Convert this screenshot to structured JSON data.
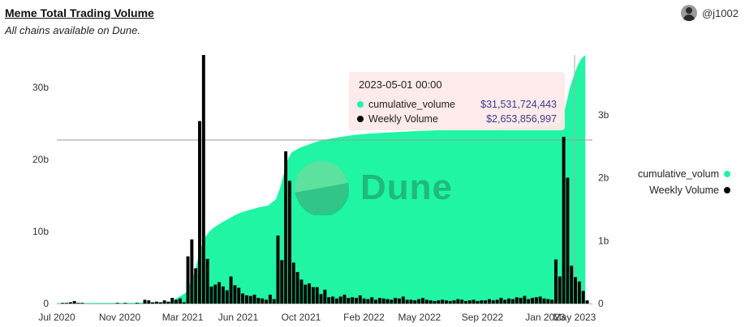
{
  "header": {
    "title": "Meme Total Trading Volume",
    "subtitle": "All chains available on Dune.",
    "author": "@j1002"
  },
  "watermark": "Dune",
  "legend": [
    {
      "label": "cumulative_volum",
      "color": "#1ff5a2"
    },
    {
      "label": "Weekly Volume",
      "color": "#000000"
    }
  ],
  "tooltip": {
    "title": "2023-05-01 00:00",
    "rows": [
      {
        "name": "cumulative_volume",
        "value": "$31,531,724,443",
        "color": "#1ff5a2"
      },
      {
        "name": "Weekly Volume",
        "value": "$2,653,856,997",
        "color": "#000000"
      }
    ]
  },
  "chart_data": {
    "type": "bar+area",
    "title": "Meme Total Trading Volume",
    "subtitle": "All chains available on Dune.",
    "x_tick_labels": [
      "Jul 2020",
      "Nov 2020",
      "Mar 2021",
      "Jun 2021",
      "Oct 2021",
      "Feb 2022",
      "May 2022",
      "Sep 2022",
      "Jan 2023",
      "May 2023"
    ],
    "y_left_ticks": [
      "0",
      "10b",
      "20b",
      "30b"
    ],
    "y_left_range": [
      0,
      34.5
    ],
    "y_right_ticks": [
      "0",
      "1b",
      "2b",
      "3b"
    ],
    "y_right_range": [
      0,
      3.95
    ],
    "series": [
      {
        "name": "cumulative_volume",
        "axis": "left",
        "unit": "billions USD",
        "points": [
          [
            0,
            0.05
          ],
          [
            20,
            0.1
          ],
          [
            29,
            0.2
          ],
          [
            33,
            1.5
          ],
          [
            35,
            4.0
          ],
          [
            37,
            8.0
          ],
          [
            38,
            9.3
          ],
          [
            39,
            10.0
          ],
          [
            40,
            10.5
          ],
          [
            42,
            11.2
          ],
          [
            44,
            11.8
          ],
          [
            46,
            12.4
          ],
          [
            48,
            12.8
          ],
          [
            50,
            13.1
          ],
          [
            52,
            13.4
          ],
          [
            54,
            13.6
          ],
          [
            56,
            14.5
          ],
          [
            57,
            16.0
          ],
          [
            58,
            18.0
          ],
          [
            59,
            20.0
          ],
          [
            60,
            21.0
          ],
          [
            62,
            21.6
          ],
          [
            64,
            22.0
          ],
          [
            66,
            22.4
          ],
          [
            68,
            22.7
          ],
          [
            70,
            22.9
          ],
          [
            72,
            23.1
          ],
          [
            76,
            23.4
          ],
          [
            80,
            23.6
          ],
          [
            90,
            23.9
          ],
          [
            100,
            24.1
          ],
          [
            110,
            24.3
          ],
          [
            122,
            24.5
          ],
          [
            128,
            24.8
          ],
          [
            129,
            25.6
          ],
          [
            130,
            27.4
          ],
          [
            131,
            29.8
          ],
          [
            132,
            31.5
          ],
          [
            133,
            33.0
          ],
          [
            134,
            34.0
          ],
          [
            135,
            34.5
          ]
        ]
      },
      {
        "name": "Weekly Volume",
        "axis": "right",
        "unit": "billions USD",
        "values": [
          0,
          0.01,
          0.01,
          0.02,
          0.04,
          0.01,
          0.01,
          0,
          0,
          0,
          0,
          0,
          0,
          0,
          0,
          0.01,
          0,
          0.01,
          0,
          0,
          0.01,
          0,
          0.06,
          0.05,
          0.02,
          0.03,
          0.02,
          0.05,
          0.03,
          0.09,
          0.06,
          0.08,
          0.02,
          0.75,
          1.02,
          0.56,
          2.9,
          3.95,
          0.71,
          0.27,
          0.3,
          0.34,
          0.27,
          0.21,
          0.43,
          0.29,
          0.25,
          0.16,
          0.13,
          0.12,
          0.14,
          0.09,
          0.08,
          0.06,
          0.14,
          0.07,
          1.08,
          0.69,
          2.42,
          1.95,
          0.65,
          0.5,
          0.38,
          0.3,
          0.32,
          0.26,
          0.26,
          0.15,
          0.22,
          0.1,
          0.11,
          0.08,
          0.11,
          0.14,
          0.09,
          0.1,
          0.09,
          0.13,
          0.08,
          0.07,
          0.1,
          0.06,
          0.09,
          0.08,
          0.07,
          0.06,
          0.09,
          0.08,
          0.11,
          0.06,
          0.06,
          0.05,
          0.07,
          0.09,
          0.06,
          0.05,
          0.04,
          0.05,
          0.06,
          0.05,
          0.04,
          0.05,
          0.07,
          0.06,
          0.04,
          0.05,
          0.06,
          0.04,
          0.05,
          0.05,
          0.07,
          0.05,
          0.06,
          0.09,
          0.06,
          0.08,
          0.07,
          0.1,
          0.09,
          0.12,
          0.07,
          0.09,
          0.1,
          0.11,
          0.08,
          0.07,
          0.06,
          0.7,
          0.43,
          2.65,
          2.0,
          0.6,
          0.42,
          0.35,
          0.2,
          0.05
        ]
      }
    ],
    "grid": false,
    "legend_position": "right"
  },
  "colors": {
    "area": "#1ff5a2",
    "bar": "#000000",
    "axis": "#999999"
  }
}
